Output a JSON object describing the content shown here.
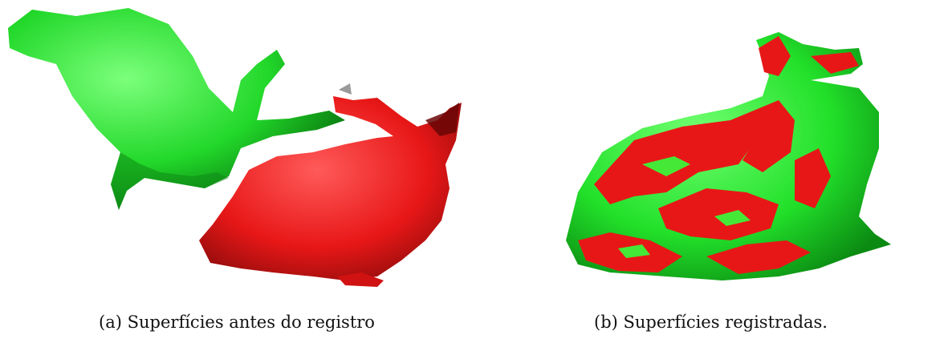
{
  "figure": {
    "panels": [
      {
        "caption": "(a) Superfícies antes do registro",
        "description_colors": {
          "source": "#22e02a",
          "target": "#e81717"
        }
      },
      {
        "caption": "(b) Superfícies registradas.",
        "description_colors": {
          "source": "#22e02a",
          "target": "#e81717"
        }
      }
    ]
  },
  "colors": {
    "green": "#22e02a",
    "red": "#e81717",
    "background": "#ffffff"
  }
}
